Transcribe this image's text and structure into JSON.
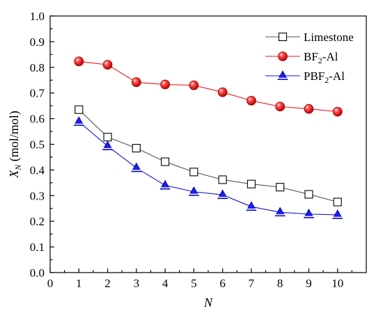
{
  "chart_data": {
    "type": "line",
    "xlabel": "N",
    "ylabel_main": "X",
    "ylabel_sub": "N",
    "ylabel_unit": " (mol/mol)",
    "xlim": [
      0,
      11
    ],
    "ylim": [
      0.0,
      1.0
    ],
    "xticks": [
      0,
      1,
      2,
      3,
      4,
      5,
      6,
      7,
      8,
      9,
      10
    ],
    "yticks": [
      0.0,
      0.1,
      0.2,
      0.3,
      0.4,
      0.5,
      0.6,
      0.7,
      0.8,
      0.9,
      1.0
    ],
    "ytick_labels": [
      "0.0",
      "0.1",
      "0.2",
      "0.3",
      "0.4",
      "0.5",
      "0.6",
      "0.7",
      "0.8",
      "0.9",
      "1.0"
    ],
    "xtick_labels": [
      "0",
      "1",
      "2",
      "3",
      "4",
      "5",
      "6",
      "7",
      "8",
      "9",
      "10"
    ],
    "legend_position": "top-right",
    "grid": false,
    "x": [
      1,
      2,
      3,
      4,
      5,
      6,
      7,
      8,
      9,
      10
    ],
    "series": [
      {
        "name": "Limestone",
        "legend_main": "Limestone",
        "legend_sub": "",
        "legend_tail": "",
        "marker": "square-open",
        "color": "#000000",
        "line_color": "#555555",
        "values": [
          0.635,
          0.528,
          0.485,
          0.432,
          0.392,
          0.362,
          0.345,
          0.333,
          0.305,
          0.275
        ]
      },
      {
        "name": "BF2-Al",
        "legend_main": "BF",
        "legend_sub": "2",
        "legend_tail": "-Al",
        "marker": "circle-red",
        "color": "#e8161b",
        "line_color": "#e8161b",
        "values": [
          0.823,
          0.81,
          0.742,
          0.733,
          0.73,
          0.703,
          0.67,
          0.647,
          0.638,
          0.627
        ]
      },
      {
        "name": "PBF2-Al",
        "legend_main": "PBF",
        "legend_sub": "2",
        "legend_tail": "-Al",
        "marker": "triangle-blue",
        "color": "#1010e0",
        "line_color": "#1010e0",
        "values": [
          0.588,
          0.493,
          0.408,
          0.34,
          0.315,
          0.303,
          0.257,
          0.235,
          0.228,
          0.225
        ]
      }
    ]
  }
}
